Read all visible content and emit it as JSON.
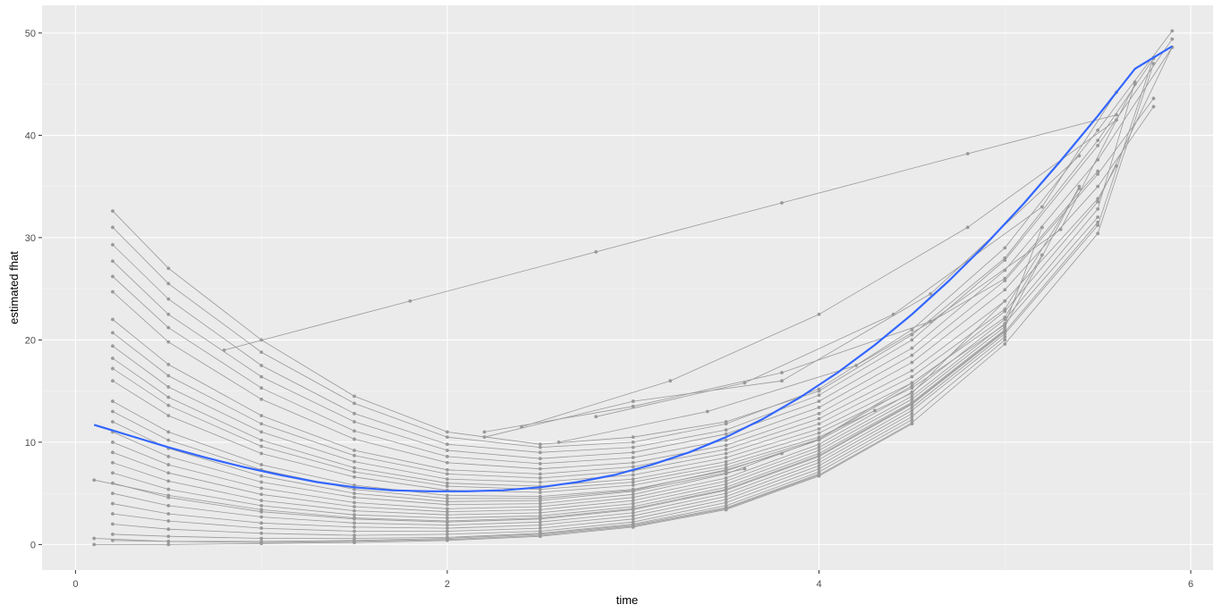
{
  "chart_data": {
    "type": "line",
    "title": "",
    "xlabel": "time",
    "ylabel": "estimated fhat",
    "xlim": [
      -0.18,
      6.12
    ],
    "ylim": [
      -2.5,
      52.7
    ],
    "xticks": [
      0,
      2,
      4,
      6
    ],
    "yticks": [
      0,
      10,
      20,
      30,
      40,
      50
    ],
    "grid": true,
    "background": "#ebebeb",
    "colors": {
      "individual": "#999999",
      "smooth": "#3366ff",
      "grid_major": "#ffffff",
      "grid_minor": "#f5f5f5"
    },
    "smooth_series": {
      "x": [
        0.1,
        0.3,
        0.5,
        0.7,
        0.9,
        1.1,
        1.3,
        1.5,
        1.7,
        1.9,
        2.1,
        2.3,
        2.5,
        2.7,
        2.9,
        3.1,
        3.3,
        3.5,
        3.7,
        3.9,
        4.1,
        4.3,
        4.5,
        4.7,
        4.9,
        5.1,
        5.3,
        5.5,
        5.7,
        5.9
      ],
      "y": [
        11.7,
        10.6,
        9.5,
        8.5,
        7.6,
        6.8,
        6.1,
        5.6,
        5.3,
        5.2,
        5.2,
        5.3,
        5.6,
        6.1,
        6.8,
        7.8,
        9.0,
        10.5,
        12.3,
        14.4,
        16.8,
        19.5,
        22.5,
        25.8,
        29.4,
        33.3,
        37.5,
        41.9,
        46.5,
        48.7
      ]
    },
    "trajectories": [
      {
        "x": [
          0.2,
          0.5,
          1.0,
          1.5,
          2.0,
          2.5,
          3.0,
          3.5,
          4.0,
          4.5,
          5.0,
          5.5,
          5.8
        ],
        "y": [
          32.6,
          27.0,
          20.0,
          14.5,
          11.0,
          9.8,
          10.5,
          12.0,
          15.0,
          20.5,
          28.0,
          39.5,
          47.5
        ]
      },
      {
        "x": [
          0.2,
          0.5,
          1.0,
          1.5,
          2.0,
          2.5,
          3.0,
          3.5,
          4.0,
          4.5,
          5.0,
          5.5,
          5.9
        ],
        "y": [
          31.0,
          25.5,
          18.8,
          13.8,
          10.5,
          9.5,
          10.0,
          11.8,
          15.2,
          21.0,
          29.0,
          40.5,
          50.2
        ]
      },
      {
        "x": [
          0.2,
          0.5,
          1.0,
          1.5,
          2.0,
          2.5,
          3.0,
          3.5,
          4.0,
          4.5,
          5.0,
          5.5,
          5.9
        ],
        "y": [
          29.3,
          24.0,
          17.5,
          12.8,
          9.8,
          9.0,
          9.5,
          11.2,
          14.6,
          20.0,
          27.8,
          39.0,
          49.4
        ]
      },
      {
        "x": [
          0.2,
          0.5,
          1.0,
          1.5,
          2.0,
          2.5,
          3.0,
          3.5,
          4.0,
          4.5,
          5.0,
          5.5,
          5.9
        ],
        "y": [
          27.7,
          22.5,
          16.4,
          12.0,
          9.2,
          8.4,
          9.0,
          10.8,
          14.0,
          19.2,
          26.8,
          37.6,
          48.6
        ]
      },
      {
        "x": [
          0.2,
          0.5,
          1.0,
          1.5,
          2.0,
          2.5,
          3.0,
          3.5,
          4.0,
          4.5,
          5.0,
          5.5,
          5.8
        ],
        "y": [
          26.2,
          21.2,
          15.3,
          11.1,
          8.6,
          7.9,
          8.5,
          10.2,
          13.4,
          18.5,
          25.8,
          36.2,
          43.6
        ]
      },
      {
        "x": [
          0.2,
          0.5,
          1.0,
          1.5,
          2.0,
          2.5,
          3.0,
          3.5,
          4.0,
          4.5,
          5.0,
          5.5,
          5.8
        ],
        "y": [
          24.7,
          19.8,
          14.2,
          10.3,
          8.0,
          7.4,
          8.0,
          9.7,
          12.8,
          17.8,
          24.9,
          35.0,
          42.8
        ]
      },
      {
        "x": [
          0.2,
          0.5,
          1.0,
          1.5,
          2.0,
          2.5,
          3.0,
          3.5,
          4.0,
          4.5,
          5.0,
          5.5,
          5.6
        ],
        "y": [
          22.0,
          17.6,
          12.6,
          9.2,
          7.3,
          6.9,
          7.6,
          9.3,
          12.3,
          17.0,
          23.8,
          33.8,
          37.0
        ]
      },
      {
        "x": [
          0.2,
          0.5,
          1.0,
          1.5,
          2.0,
          2.5,
          3.0,
          3.5,
          4.0,
          4.5,
          5.0,
          5.4
        ],
        "y": [
          20.7,
          16.5,
          11.8,
          8.7,
          6.9,
          6.5,
          7.2,
          8.9,
          11.8,
          16.4,
          23.0,
          34.8
        ]
      },
      {
        "x": [
          0.2,
          0.5,
          1.0,
          1.5,
          2.0,
          2.5,
          3.0,
          3.5,
          4.0,
          4.5,
          5.0,
          5.2
        ],
        "y": [
          19.4,
          15.4,
          11.0,
          8.1,
          6.4,
          6.1,
          6.8,
          8.5,
          11.3,
          15.8,
          22.2,
          28.3
        ]
      },
      {
        "x": [
          0.2,
          0.5,
          1.0,
          1.5,
          2.0,
          2.5,
          3.0,
          3.5,
          4.0,
          4.5,
          5.0,
          5.2
        ],
        "y": [
          18.2,
          14.4,
          10.2,
          7.5,
          6.0,
          5.7,
          6.4,
          8.1,
          10.9,
          15.3,
          21.5,
          31.0
        ]
      },
      {
        "x": [
          0.2,
          0.5,
          1.0,
          1.5,
          2.0,
          2.5,
          3.0,
          3.5,
          4.0,
          4.5,
          5.0
        ],
        "y": [
          17.2,
          13.6,
          9.6,
          7.1,
          5.7,
          5.4,
          6.1,
          7.8,
          10.5,
          14.8,
          23.8
        ]
      },
      {
        "x": [
          0.2,
          0.5,
          1.0,
          1.5,
          2.0,
          2.5,
          3.0,
          3.5,
          4.0,
          4.5
        ],
        "y": [
          16.0,
          12.6,
          8.9,
          6.6,
          5.3,
          5.1,
          5.8,
          7.5,
          10.3,
          15.8
        ]
      },
      {
        "x": [
          0.2,
          0.5,
          1.0,
          1.5,
          2.0,
          2.5,
          3.0,
          3.5,
          4.0,
          4.3
        ],
        "y": [
          14.0,
          11.0,
          7.8,
          5.8,
          4.8,
          4.7,
          5.4,
          7.2,
          10.2,
          13.1
        ]
      },
      {
        "x": [
          0.2,
          0.5,
          1.0,
          1.5,
          2.0,
          2.5,
          3.0,
          3.5,
          3.8
        ],
        "y": [
          13.0,
          10.2,
          7.3,
          5.4,
          4.5,
          4.5,
          5.3,
          7.3,
          8.9
        ]
      },
      {
        "x": [
          0.2,
          0.5,
          1.0,
          1.5,
          2.0,
          2.5,
          3.0,
          3.5,
          3.6
        ],
        "y": [
          12.0,
          9.4,
          6.7,
          5.0,
          4.2,
          4.3,
          5.2,
          7.0,
          7.4
        ]
      },
      {
        "x": [
          0.2,
          0.5,
          1.0,
          1.5,
          2.0,
          2.5,
          3.0,
          3.5,
          4.0,
          4.5,
          5.0,
          5.5,
          5.9
        ],
        "y": [
          11.0,
          8.6,
          6.1,
          4.6,
          3.9,
          4.0,
          4.9,
          6.9,
          10.3,
          15.5,
          22.8,
          33.5,
          48.6
        ]
      },
      {
        "x": [
          0.2,
          0.5,
          1.0,
          1.5,
          2.0,
          2.5,
          3.0,
          3.5,
          4.0,
          4.5,
          5.0,
          5.5,
          5.7
        ],
        "y": [
          10.0,
          7.8,
          5.5,
          4.1,
          3.5,
          3.7,
          4.6,
          6.5,
          9.8,
          14.9,
          22.0,
          32.8,
          45.2
        ]
      },
      {
        "x": [
          0.2,
          0.5,
          1.0,
          1.5,
          2.0,
          2.5,
          3.0,
          3.5,
          4.0,
          4.5,
          5.0,
          5.5
        ],
        "y": [
          9.0,
          7.0,
          4.9,
          3.7,
          3.2,
          3.4,
          4.3,
          6.2,
          9.5,
          14.5,
          21.6,
          32.0
        ]
      },
      {
        "x": [
          0.2,
          0.5,
          1.0,
          1.5,
          2.0,
          2.5,
          3.0,
          3.5,
          4.0,
          4.5,
          5.0,
          5.4
        ],
        "y": [
          8.0,
          6.2,
          4.3,
          3.3,
          2.9,
          3.1,
          4.0,
          5.9,
          9.2,
          14.2,
          21.3,
          35.0
        ]
      },
      {
        "x": [
          0.2,
          0.5,
          1.0,
          1.5,
          2.0,
          2.5,
          3.0,
          3.5,
          4.0,
          4.5,
          5.0
        ],
        "y": [
          7.0,
          5.4,
          3.8,
          2.9,
          2.6,
          2.8,
          3.7,
          5.6,
          8.9,
          13.9,
          21.0
        ]
      },
      {
        "x": [
          0.2,
          0.5,
          1.0,
          1.5,
          2.0,
          2.5,
          3.0,
          3.5,
          4.0,
          4.5,
          5.0,
          5.5
        ],
        "y": [
          6.0,
          4.6,
          3.2,
          2.5,
          2.2,
          2.5,
          3.4,
          5.3,
          8.6,
          13.7,
          20.8,
          31.5
        ]
      },
      {
        "x": [
          0.2,
          0.5,
          1.0,
          1.5,
          2.0,
          2.5,
          3.0,
          3.5,
          4.0,
          4.5,
          5.0,
          5.5,
          5.8
        ],
        "y": [
          5.0,
          3.8,
          2.7,
          2.1,
          1.9,
          2.2,
          3.1,
          5.0,
          8.3,
          13.4,
          20.6,
          31.2,
          47.6
        ]
      },
      {
        "x": [
          0.2,
          0.5,
          1.0,
          1.5,
          2.0,
          2.5,
          3.0,
          3.5,
          4.0,
          4.5,
          5.0
        ],
        "y": [
          4.0,
          3.0,
          2.1,
          1.7,
          1.6,
          1.9,
          2.8,
          4.7,
          8.0,
          13.1,
          20.3
        ]
      },
      {
        "x": [
          0.2,
          0.5,
          1.0,
          1.5,
          2.0,
          2.5,
          3.0,
          3.5,
          4.0,
          4.5
        ],
        "y": [
          3.0,
          2.3,
          1.6,
          1.3,
          1.3,
          1.6,
          2.5,
          4.4,
          7.7,
          12.8
        ]
      },
      {
        "x": [
          0.2,
          0.5,
          1.0,
          1.5,
          2.0,
          2.5,
          3.0,
          3.5,
          4.0,
          4.5,
          5.0
        ],
        "y": [
          2.0,
          1.5,
          1.1,
          0.9,
          1.0,
          1.3,
          2.2,
          4.1,
          7.4,
          12.5,
          20.0
        ]
      },
      {
        "x": [
          0.2,
          0.5,
          1.0,
          1.5,
          2.0,
          2.5,
          3.0,
          3.5,
          4.0,
          4.5
        ],
        "y": [
          1.0,
          0.8,
          0.6,
          0.6,
          0.7,
          1.1,
          2.0,
          3.8,
          7.1,
          12.2
        ]
      },
      {
        "x": [
          0.2,
          0.5,
          1.0,
          1.5,
          2.0,
          2.5,
          3.0,
          3.5,
          4.0
        ],
        "y": [
          0.4,
          0.3,
          0.3,
          0.4,
          0.6,
          1.0,
          1.9,
          3.6,
          6.9
        ]
      },
      {
        "x": [
          0.1,
          0.5,
          1.0,
          1.5,
          2.0,
          2.5,
          3.0,
          3.5,
          4.0,
          4.5,
          5.0,
          5.5,
          5.8
        ],
        "y": [
          0.6,
          0.3,
          0.2,
          0.3,
          0.5,
          0.9,
          1.8,
          3.5,
          6.8,
          11.9,
          19.6,
          30.4,
          47.0
        ]
      },
      {
        "x": [
          0.1,
          0.5,
          1.0,
          1.5,
          2.0,
          2.5,
          3.0,
          3.5,
          4.0,
          4.5
        ],
        "y": [
          0.0,
          0.0,
          0.1,
          0.2,
          0.4,
          0.8,
          1.7,
          3.4,
          6.7,
          11.8
        ]
      },
      {
        "x": [
          0.1,
          0.5,
          1.0,
          1.5,
          2.0,
          2.5,
          3.0,
          3.5,
          4.0,
          4.5,
          5.0
        ],
        "y": [
          6.3,
          4.8,
          3.4,
          2.6,
          2.3,
          2.6,
          3.5,
          5.4,
          8.7,
          13.8,
          20.9
        ]
      },
      {
        "x": [
          0.8,
          1.8,
          2.8,
          3.8,
          4.8,
          5.6
        ],
        "y": [
          19.0,
          23.8,
          28.6,
          33.4,
          38.2,
          42.0
        ]
      },
      {
        "x": [
          2.2,
          3.0,
          3.8,
          4.6,
          5.3,
          5.7
        ],
        "y": [
          11.0,
          13.5,
          16.8,
          21.8,
          30.8,
          45.0
        ]
      },
      {
        "x": [
          2.6,
          3.4,
          4.2,
          5.0,
          5.5
        ],
        "y": [
          10.0,
          13.0,
          17.5,
          26.0,
          36.5
        ]
      },
      {
        "x": [
          2.4,
          3.2,
          4.0,
          4.8,
          5.6
        ],
        "y": [
          11.5,
          16.0,
          22.5,
          31.0,
          41.5
        ]
      },
      {
        "x": [
          2.8,
          3.6,
          4.4,
          5.2,
          5.6
        ],
        "y": [
          12.5,
          15.8,
          22.5,
          33.0,
          44.2
        ]
      },
      {
        "x": [
          2.2,
          3.0,
          3.8,
          4.6,
          5.4
        ],
        "y": [
          10.5,
          14.0,
          16.0,
          24.5,
          38.0
        ]
      }
    ]
  }
}
